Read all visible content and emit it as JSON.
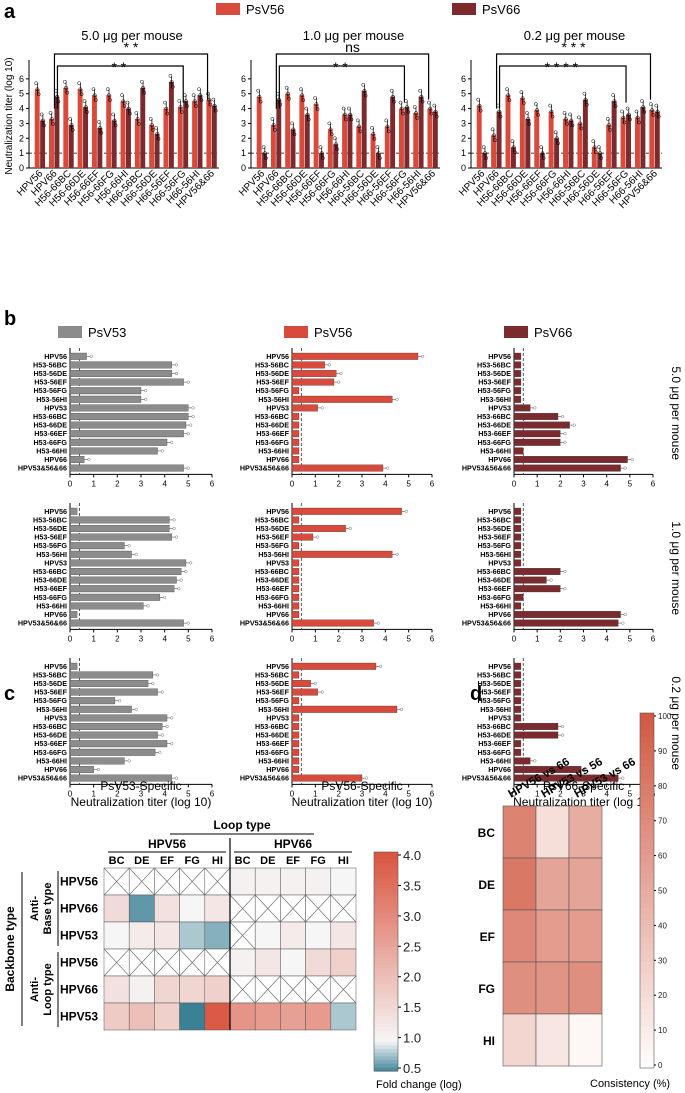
{
  "colors": {
    "psv56": "#d84a3c",
    "psv66": "#7b2a2e",
    "psv53": "#8c8c8c"
  },
  "panel_letters": [
    "a",
    "b",
    "c",
    "d"
  ],
  "chart_data": [
    {
      "panel": "a",
      "type": "bar",
      "legend": [
        "PsV56",
        "PsV66"
      ],
      "ylabel": "Neutralization titer (log 10)",
      "ylim": [
        0,
        7
      ],
      "yticks": [
        "0",
        "1",
        "2",
        "3",
        "4",
        "5",
        "6"
      ],
      "categories": [
        "HPV56",
        "HPV66",
        "H56-66BC",
        "H56-66DE",
        "H56-66EF",
        "H56-66FG",
        "H56-66HI",
        "H66-56BC",
        "H66-56DE",
        "H66-56EF",
        "H66-56FG",
        "H66-56HI",
        "HPV56&66"
      ],
      "subplots": [
        {
          "title": "5.0 μg per mouse",
          "sig_top": "* *",
          "sig_bottom": "* *",
          "series": [
            {
              "name": "PsV56",
              "values": [
                5.3,
                3.3,
                5.4,
                5.3,
                4.9,
                4.9,
                4.5,
                3.3,
                2.9,
                4.0,
                4.1,
                4.5,
                4.6
              ]
            },
            {
              "name": "PsV66",
              "values": [
                3.2,
                4.8,
                2.9,
                4.1,
                2.7,
                3.2,
                4.0,
                5.4,
                2.3,
                5.8,
                4.5,
                4.9,
                4.2
              ]
            }
          ]
        },
        {
          "title": "1.0 μg per mouse",
          "sig_top": "ns",
          "sig_bottom": "* *",
          "series": [
            {
              "name": "PsV56",
              "values": [
                4.8,
                2.9,
                5.0,
                4.9,
                4.3,
                2.6,
                3.6,
                2.8,
                2.3,
                2.8,
                4.0,
                3.7,
                4.0
              ]
            },
            {
              "name": "PsV66",
              "values": [
                1.0,
                4.6,
                2.6,
                3.6,
                1.0,
                1.6,
                3.6,
                5.2,
                1.0,
                4.8,
                4.1,
                4.8,
                3.8
              ]
            }
          ]
        },
        {
          "title": "0.2 μg per mouse",
          "sig_top": "* * *",
          "sig_bottom": "* * * *",
          "series": [
            {
              "name": "PsV56",
              "values": [
                4.2,
                2.2,
                4.9,
                4.7,
                3.9,
                3.8,
                3.3,
                3.0,
                1.4,
                2.9,
                3.4,
                3.4,
                3.9
              ]
            },
            {
              "name": "PsV66",
              "values": [
                1.0,
                3.8,
                1.4,
                3.3,
                1.0,
                2.0,
                3.2,
                4.6,
                1.0,
                4.5,
                3.6,
                4.1,
                3.8
              ]
            }
          ]
        }
      ]
    },
    {
      "panel": "b",
      "type": "bar",
      "orientation": "horizontal",
      "xlim": [
        0,
        6
      ],
      "xticks": [
        "0",
        "1",
        "2",
        "3",
        "4",
        "5",
        "6"
      ],
      "categories": [
        "HPV56",
        "H53-56BC",
        "H53-56DE",
        "H53-56EF",
        "H53-56FG",
        "H53-56HI",
        "HPV53",
        "H53-66BC",
        "H53-66DE",
        "H53-66EF",
        "H53-66FG",
        "H53-66HI",
        "HPV66",
        "HPV53&56&66"
      ],
      "row_labels": [
        "5.0 μg per mouse",
        "1.0 μg per mouse",
        "0.2 μg per mouse"
      ],
      "columns": [
        {
          "legend": "PsV53",
          "xlabel": [
            "PsV53-Specific",
            "Neutralization titer (log 10)"
          ],
          "rows": [
            [
              0.7,
              4.3,
              4.3,
              4.8,
              3.0,
              3.0,
              5.0,
              5.0,
              4.9,
              4.8,
              4.1,
              3.7,
              0.6,
              4.8
            ],
            [
              0.3,
              4.2,
              4.2,
              4.3,
              2.3,
              2.6,
              4.9,
              4.7,
              4.5,
              4.4,
              3.8,
              3.1,
              0.3,
              4.8
            ],
            [
              0.3,
              3.5,
              3.3,
              3.7,
              1.9,
              2.6,
              4.1,
              3.9,
              3.7,
              4.1,
              3.6,
              2.3,
              1.0,
              4.3
            ]
          ]
        },
        {
          "legend": "PsV56",
          "xlabel": [
            "PsV56-Specific",
            "Neutralization titer (log 10)"
          ],
          "rows": [
            [
              5.4,
              1.4,
              1.9,
              1.8,
              0.3,
              4.3,
              1.1,
              0.3,
              0.3,
              0.3,
              0.3,
              0.3,
              0.3,
              3.9
            ],
            [
              4.7,
              0.3,
              2.3,
              0.9,
              0.3,
              4.3,
              0.3,
              0.3,
              0.3,
              0.3,
              0.3,
              0.3,
              0.3,
              3.5
            ],
            [
              3.6,
              0.3,
              0.8,
              1.1,
              0.3,
              4.5,
              0.3,
              0.3,
              0.3,
              0.3,
              0.3,
              0.3,
              0.3,
              3.0
            ]
          ]
        },
        {
          "legend": "PsV66",
          "xlabel": [
            "PsV66-Specific",
            "Neutralization titer (log 10)"
          ],
          "rows": [
            [
              0.3,
              0.3,
              0.3,
              0.3,
              0.3,
              0.3,
              0.7,
              1.9,
              2.4,
              2.0,
              2.0,
              0.4,
              4.9,
              4.6
            ],
            [
              0.3,
              0.3,
              0.3,
              0.3,
              0.3,
              0.3,
              0.3,
              2.0,
              1.4,
              2.0,
              0.4,
              0.3,
              4.6,
              4.5
            ],
            [
              0.3,
              0.3,
              0.3,
              0.3,
              0.3,
              0.3,
              0.3,
              1.9,
              1.9,
              0.3,
              0.3,
              0.7,
              2.9,
              4.5
            ]
          ]
        }
      ]
    },
    {
      "panel": "c",
      "type": "heatmap",
      "header": "Loop type",
      "groups": [
        "HPV56",
        "HPV66"
      ],
      "columns": [
        "BC",
        "DE",
        "EF",
        "FG",
        "HI",
        "BC",
        "DE",
        "EF",
        "FG",
        "HI"
      ],
      "y_title": "Backbone type",
      "row_groups": [
        "Anti-\nBase type",
        "Anti-\nLoop type"
      ],
      "rows": [
        "HPV56",
        "HPV66",
        "HPV53",
        "HPV56",
        "HPV66",
        "HPV53"
      ],
      "values": [
        [
          null,
          null,
          null,
          null,
          null,
          1.1,
          1.1,
          1.1,
          1.1,
          1.0
        ],
        [
          1.5,
          0.6,
          1.4,
          1.0,
          1.3,
          null,
          null,
          null,
          null,
          null
        ],
        [
          1.0,
          1.2,
          1.3,
          0.8,
          0.7,
          null,
          1.0,
          1.2,
          1.0,
          1.3
        ],
        [
          null,
          null,
          null,
          null,
          null,
          1.1,
          1.3,
          1.0,
          1.5,
          1.7
        ],
        [
          1.4,
          1.1,
          1.6,
          1.6,
          1.7,
          null,
          null,
          null,
          null,
          null
        ],
        [
          1.8,
          2.0,
          1.7,
          0.5,
          3.9,
          2.8,
          2.7,
          2.6,
          2.7,
          0.8
        ]
      ],
      "colorbar": {
        "range": [
          0.5,
          4.0
        ],
        "ticks": [
          "4.0",
          "3.5",
          "3.0",
          "2.5",
          "2.0",
          "1.5",
          "1.0",
          "0.5"
        ],
        "label": "Fold change (log)"
      }
    },
    {
      "panel": "d",
      "type": "heatmap",
      "columns": [
        "HPV56 vs 66",
        "HPV53 vs 56",
        "HPV53 vs 66"
      ],
      "rows": [
        "BC",
        "DE",
        "EF",
        "FG",
        "HI"
      ],
      "values": [
        [
          75,
          20,
          50
        ],
        [
          82,
          55,
          55
        ],
        [
          72,
          60,
          60
        ],
        [
          68,
          65,
          68
        ],
        [
          25,
          15,
          5
        ]
      ],
      "colorbar": {
        "range": [
          0,
          100
        ],
        "ticks": [
          "100",
          "90",
          "80",
          "70",
          "60",
          "50",
          "40",
          "30",
          "20",
          "10",
          "0"
        ],
        "label": "Consistency (%)"
      }
    }
  ]
}
